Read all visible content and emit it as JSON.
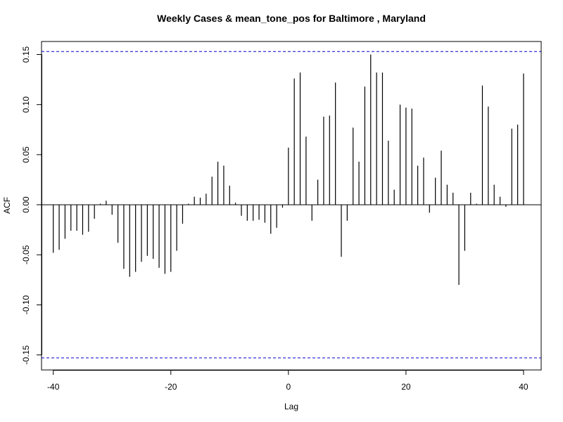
{
  "chart_data": {
    "type": "bar",
    "title": "Weekly Cases & mean_tone_pos for Baltimore , Maryland",
    "xlabel": "Lag",
    "ylabel": "ACF",
    "xlim": [
      -42,
      43
    ],
    "ylim": [
      -0.165,
      0.163
    ],
    "x_ticks": [
      -40,
      -20,
      0,
      20,
      40
    ],
    "x_tick_labels": [
      "-40",
      "-20",
      "0",
      "20",
      "40"
    ],
    "y_ticks": [
      -0.15,
      -0.1,
      -0.05,
      0.0,
      0.05,
      0.1,
      0.15
    ],
    "y_tick_labels": [
      "-0.15",
      "-0.10",
      "-0.05",
      "0.00",
      "0.05",
      "0.10",
      "0.15"
    ],
    "confidence_bounds": [
      0.153,
      -0.153
    ],
    "bound_color": "#0000cc",
    "bar_color": "#000000",
    "lags": [
      -40,
      -39,
      -38,
      -37,
      -36,
      -35,
      -34,
      -33,
      -32,
      -31,
      -30,
      -29,
      -28,
      -27,
      -26,
      -25,
      -24,
      -23,
      -22,
      -21,
      -20,
      -19,
      -18,
      -17,
      -16,
      -15,
      -14,
      -13,
      -12,
      -11,
      -10,
      -9,
      -8,
      -7,
      -6,
      -5,
      -4,
      -3,
      -2,
      -1,
      0,
      1,
      2,
      3,
      4,
      5,
      6,
      7,
      8,
      9,
      10,
      11,
      12,
      13,
      14,
      15,
      16,
      17,
      18,
      19,
      20,
      21,
      22,
      23,
      24,
      25,
      26,
      27,
      28,
      29,
      30,
      31,
      32,
      33,
      34,
      35,
      36,
      37,
      38,
      39,
      40
    ],
    "values": [
      -0.048,
      -0.045,
      -0.034,
      -0.026,
      -0.026,
      -0.03,
      -0.027,
      -0.014,
      0.001,
      0.004,
      -0.01,
      -0.038,
      -0.064,
      -0.072,
      -0.067,
      -0.057,
      -0.051,
      -0.054,
      -0.063,
      -0.069,
      -0.067,
      -0.046,
      -0.019,
      0.001,
      0.008,
      0.007,
      0.011,
      0.028,
      0.043,
      0.039,
      0.019,
      0.002,
      -0.011,
      -0.016,
      -0.016,
      -0.015,
      -0.018,
      -0.029,
      -0.023,
      -0.003,
      0.057,
      0.126,
      0.132,
      0.068,
      -0.016,
      0.025,
      0.088,
      0.089,
      0.122,
      -0.052,
      -0.016,
      0.077,
      0.043,
      0.118,
      0.15,
      0.132,
      0.132,
      0.064,
      0.015,
      0.1,
      0.097,
      0.096,
      0.039,
      0.047,
      -0.008,
      0.027,
      0.054,
      0.02,
      0.012,
      -0.08,
      -0.046,
      0.012,
      0.001,
      0.119,
      0.098,
      0.02,
      0.008,
      -0.002,
      0.076,
      0.08,
      0.131
    ]
  }
}
